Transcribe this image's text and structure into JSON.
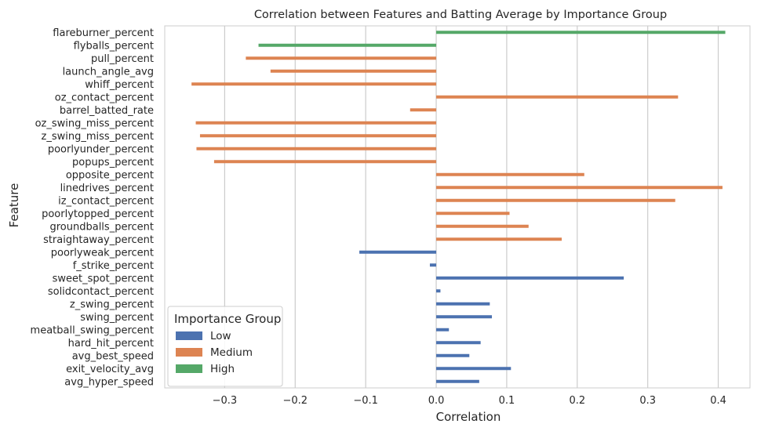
{
  "chart_data": {
    "type": "bar",
    "orientation": "horizontal",
    "title": "Correlation between Features and Batting Average by Importance Group",
    "xlabel": "Correlation",
    "ylabel": "Feature",
    "xlim": [
      -0.385,
      0.445
    ],
    "x_ticks": [
      -0.3,
      -0.2,
      -0.1,
      0.0,
      0.1,
      0.2,
      0.3,
      0.4
    ],
    "x_tick_labels": [
      "−0.3",
      "−0.2",
      "−0.1",
      "0.0",
      "0.1",
      "0.2",
      "0.3",
      "0.4"
    ],
    "grid": true,
    "categories": [
      "flareburner_percent",
      "flyballs_percent",
      "pull_percent",
      "launch_angle_avg",
      "whiff_percent",
      "oz_contact_percent",
      "barrel_batted_rate",
      "oz_swing_miss_percent",
      "z_swing_miss_percent",
      "poorlyunder_percent",
      "popups_percent",
      "opposite_percent",
      "linedrives_percent",
      "iz_contact_percent",
      "poorlytopped_percent",
      "groundballs_percent",
      "straightaway_percent",
      "poorlyweak_percent",
      "f_strike_percent",
      "sweet_spot_percent",
      "solidcontact_percent",
      "z_swing_percent",
      "swing_percent",
      "meatball_swing_percent",
      "hard_hit_percent",
      "avg_best_speed",
      "exit_velocity_avg",
      "avg_hyper_speed"
    ],
    "series": [
      {
        "name": "Low",
        "color": "#4c72b0",
        "values": [
          null,
          null,
          null,
          null,
          null,
          null,
          null,
          null,
          null,
          null,
          null,
          null,
          null,
          null,
          null,
          null,
          null,
          -0.109,
          -0.009,
          0.266,
          0.006,
          0.076,
          0.079,
          0.018,
          0.063,
          0.047,
          0.106,
          0.061
        ]
      },
      {
        "name": "Medium",
        "color": "#dd8452",
        "values": [
          null,
          null,
          -0.27,
          -0.235,
          -0.347,
          0.343,
          -0.037,
          -0.341,
          -0.335,
          -0.34,
          -0.315,
          0.21,
          0.406,
          0.339,
          0.104,
          0.131,
          0.178,
          null,
          null,
          null,
          null,
          null,
          null,
          null,
          null,
          null,
          null,
          null
        ]
      },
      {
        "name": "High",
        "color": "#55a868",
        "values": [
          0.41,
          -0.252,
          null,
          null,
          null,
          null,
          null,
          null,
          null,
          null,
          null,
          null,
          null,
          null,
          null,
          null,
          null,
          null,
          null,
          null,
          null,
          null,
          null,
          null,
          null,
          null,
          null,
          null
        ]
      }
    ],
    "legend": {
      "title": "Importance Group",
      "position": "lower-left",
      "entries": [
        "Low",
        "Medium",
        "High"
      ]
    }
  },
  "colors": {
    "grid": "#cccccc",
    "spine": "#cccccc",
    "text": "#262626",
    "background": "#ffffff"
  }
}
